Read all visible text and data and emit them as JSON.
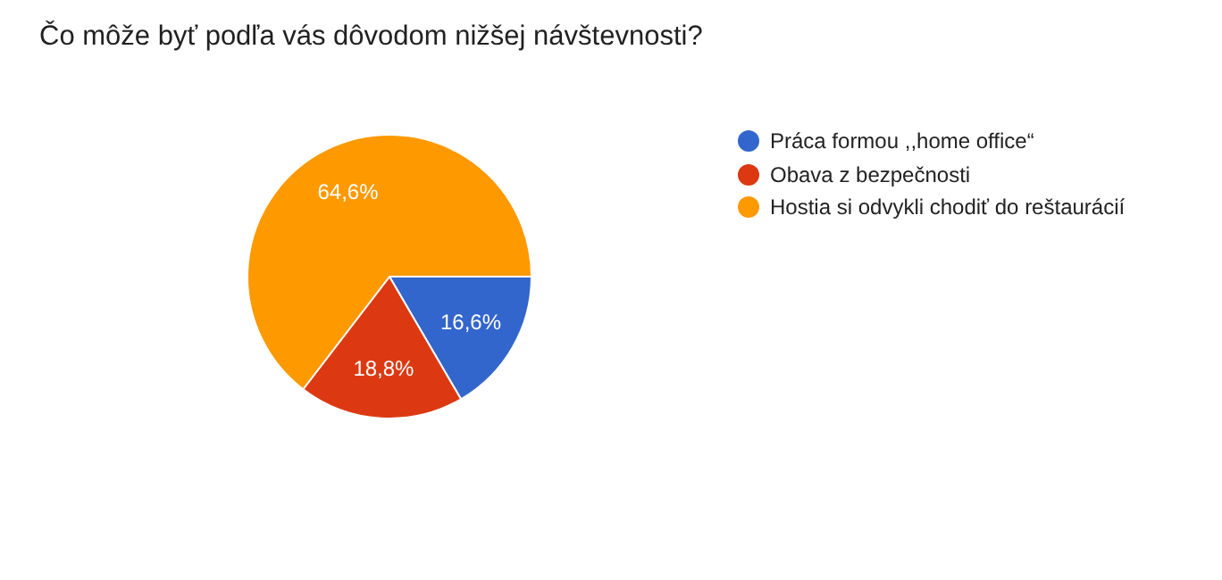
{
  "chart_data": {
    "type": "pie",
    "title": "Čo môže byť podľa vás dôvodom nižšej návštevnosti?",
    "categories": [
      "Práca formou ,,home office“",
      "Obava z bezpečnosti",
      "Hostia si odvykli chodiť do reštaurácií"
    ],
    "values": [
      16.6,
      18.8,
      64.6
    ],
    "colors": [
      "#3366cc",
      "#dc3912",
      "#ff9900"
    ],
    "value_labels": [
      "16,6%",
      "18,8%",
      "64,6%"
    ],
    "legend": "right"
  }
}
